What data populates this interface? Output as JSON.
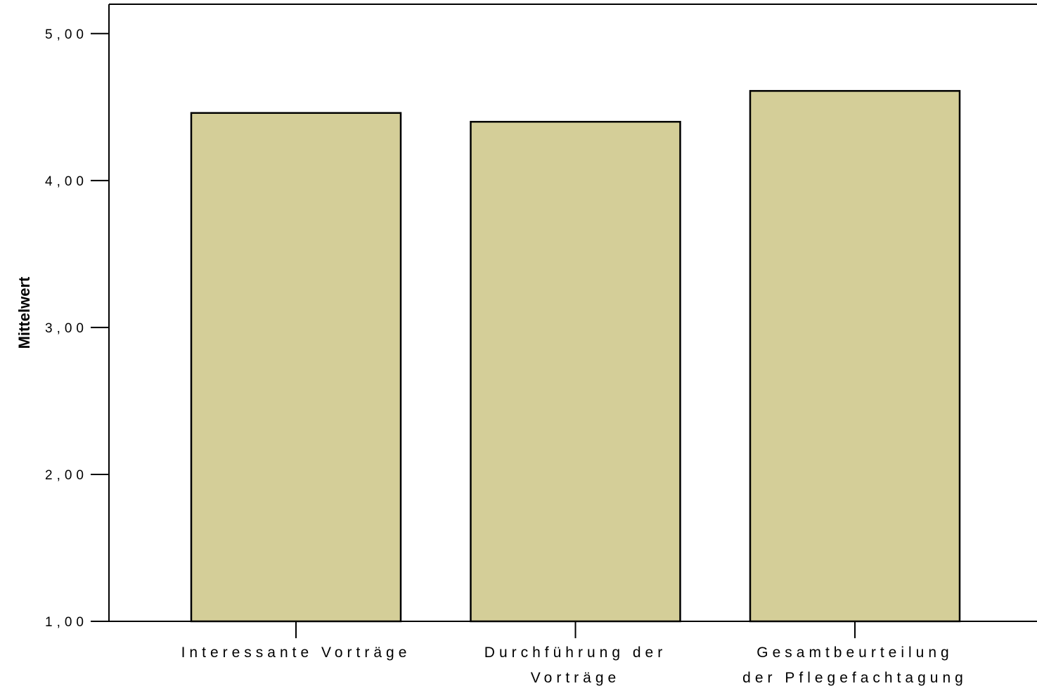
{
  "chart_data": {
    "type": "bar",
    "title": "",
    "xlabel": "",
    "ylabel": "Mittelwert",
    "ylim": [
      1,
      5.2
    ],
    "yticks": [
      1,
      2,
      3,
      4,
      5
    ],
    "ytick_labels": [
      "1,00",
      "2,00",
      "3,00",
      "4,00",
      "5,00"
    ],
    "categories": [
      [
        "Interessante Vorträge"
      ],
      [
        "Durchführung der",
        "Vorträge"
      ],
      [
        "Gesamtbeurteilung",
        "der Pflegefachtagung"
      ]
    ],
    "values": [
      4.46,
      4.4,
      4.61
    ],
    "grid": false,
    "bar_color": "#d4ce98",
    "bar_edge_color": "#000000"
  }
}
